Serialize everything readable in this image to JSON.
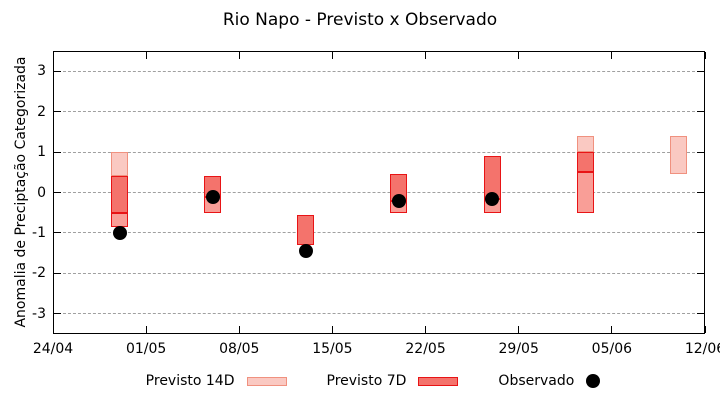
{
  "chart_data": {
    "type": "bar",
    "subtype": "forecast-range-bars-with-observations",
    "title": "Rio Napo - Previsto x Observado",
    "xlabel": "",
    "ylabel": "Anomalia de Preciptação Categorizada",
    "ylim": [
      -3.5,
      3.5
    ],
    "yticks": [
      "3",
      "2",
      "1",
      "0",
      "-1",
      "-2",
      "-3"
    ],
    "ytick_values": [
      3,
      2,
      1,
      0,
      -1,
      -2,
      -3
    ],
    "grid": "horizontal-dashed",
    "x_range_days": [
      0,
      49
    ],
    "xticks": [
      {
        "label": "24/04",
        "day": 0
      },
      {
        "label": "01/05",
        "day": 7
      },
      {
        "label": "08/05",
        "day": 14
      },
      {
        "label": "15/05",
        "day": 21
      },
      {
        "label": "22/05",
        "day": 28
      },
      {
        "label": "29/05",
        "day": 35
      },
      {
        "label": "05/06",
        "day": 42
      },
      {
        "label": "12/06",
        "day": 49
      }
    ],
    "legend": [
      {
        "label": "Previsto 14D",
        "style": "light"
      },
      {
        "label": "Previsto 7D",
        "style": "strong"
      },
      {
        "label": "Observado",
        "style": "dot"
      }
    ],
    "styles": {
      "light": {
        "fill": "#fac9c2",
        "border": "#f0917f"
      },
      "strong": {
        "fill": "#f4736c",
        "border": "#e81416"
      },
      "medium": {
        "fill": "#f99e97",
        "border": "#e81416"
      },
      "dot": {
        "fill": "#000000"
      },
      "grid_color": "#a0a0a0",
      "axis_color": "#000000"
    },
    "bars": [
      {
        "date": "29/04",
        "day": 5,
        "observed": -1.0,
        "segments": [
          {
            "style": "light",
            "from": 0.4,
            "to": 1.0
          },
          {
            "style": "strong",
            "from": -0.5,
            "to": 0.4
          },
          {
            "style": "medium",
            "from": -0.85,
            "to": -0.5
          }
        ]
      },
      {
        "date": "06/05",
        "day": 12,
        "observed": -0.1,
        "segments": [
          {
            "style": "strong",
            "from": -0.1,
            "to": 0.4
          },
          {
            "style": "medium",
            "from": -0.5,
            "to": -0.1
          }
        ]
      },
      {
        "date": "13/05",
        "day": 19,
        "observed": -1.45,
        "segments": [
          {
            "style": "strong",
            "from": -1.3,
            "to": -0.55
          }
        ]
      },
      {
        "date": "20/05",
        "day": 26,
        "observed": -0.2,
        "segments": [
          {
            "style": "strong",
            "from": -0.2,
            "to": 0.45
          },
          {
            "style": "medium",
            "from": -0.5,
            "to": -0.2
          }
        ]
      },
      {
        "date": "27/05",
        "day": 33,
        "observed": -0.15,
        "segments": [
          {
            "style": "strong",
            "from": -0.15,
            "to": 0.9
          },
          {
            "style": "medium",
            "from": -0.5,
            "to": -0.15
          }
        ]
      },
      {
        "date": "03/06",
        "day": 40,
        "observed": null,
        "segments": [
          {
            "style": "light",
            "from": 1.0,
            "to": 1.4
          },
          {
            "style": "strong",
            "from": 0.5,
            "to": 1.0
          },
          {
            "style": "medium",
            "from": -0.5,
            "to": 0.5
          }
        ]
      },
      {
        "date": "10/06",
        "day": 47,
        "observed": null,
        "segments": [
          {
            "style": "light",
            "from": 0.45,
            "to": 1.4
          }
        ]
      }
    ]
  }
}
